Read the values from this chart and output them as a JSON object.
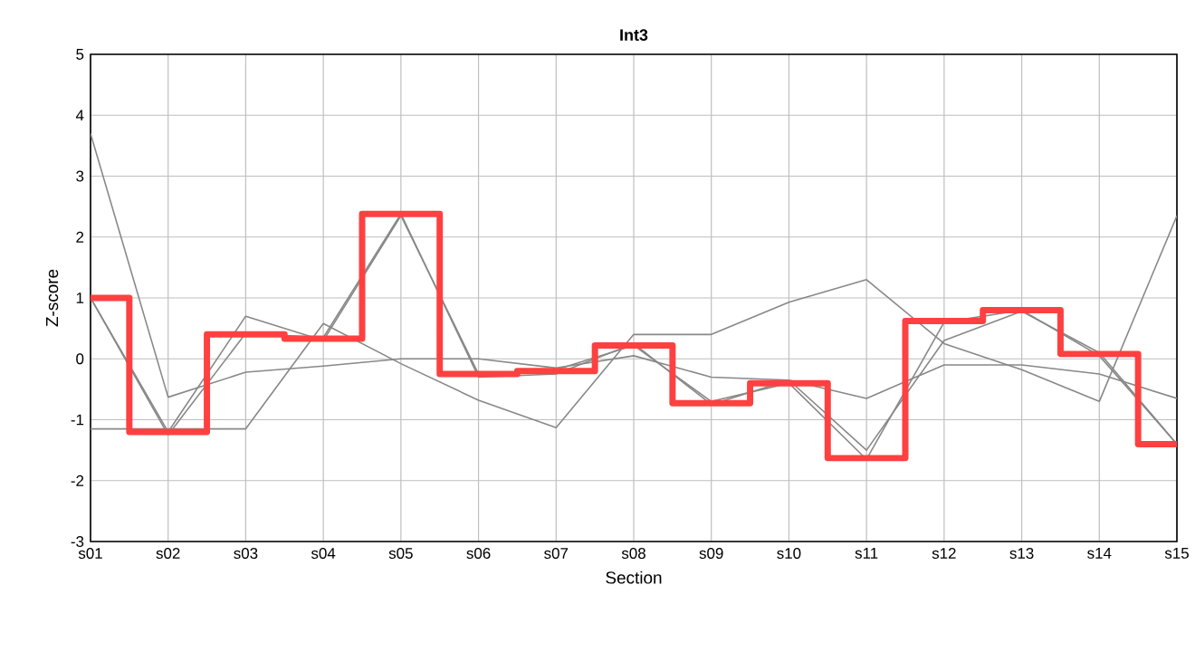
{
  "chart_data": {
    "type": "line",
    "title": "Int3",
    "xlabel": "Section",
    "ylabel": "Z-score",
    "categories": [
      "s01",
      "s02",
      "s03",
      "s04",
      "s05",
      "s06",
      "s07",
      "s08",
      "s09",
      "s10",
      "s11",
      "s12",
      "s13",
      "s14",
      "s15"
    ],
    "ylim": [
      -3,
      5
    ],
    "yticks": [
      -3,
      -2,
      -1,
      0,
      1,
      2,
      3,
      4,
      5
    ],
    "grid": true,
    "marker": "none",
    "line_style": "solid",
    "series": [
      {
        "color": "#888888",
        "values": [
          3.7,
          -0.63,
          -0.22,
          -0.12,
          0.0,
          0.0,
          -0.15,
          0.05,
          -0.3,
          -0.35,
          -0.65,
          -0.1,
          -0.1,
          -0.25,
          -0.65
        ]
      },
      {
        "color": "#888888",
        "values": [
          -1.15,
          -1.15,
          -1.15,
          0.58,
          -0.08,
          -0.68,
          -1.13,
          0.4,
          0.4,
          0.93,
          1.3,
          0.25,
          -0.18,
          -0.7,
          2.35
        ]
      },
      {
        "color": "#888888",
        "values": [
          1.0,
          -1.25,
          0.42,
          0.35,
          2.38,
          -0.3,
          -0.25,
          0.25,
          -0.75,
          -0.35,
          -1.5,
          0.3,
          0.78,
          0.1,
          -1.4
        ]
      },
      {
        "color": "#888888",
        "values": [
          1.0,
          -1.2,
          0.7,
          0.3,
          2.35,
          -0.25,
          -0.18,
          0.22,
          -0.7,
          -0.4,
          -1.65,
          0.6,
          0.8,
          0.05,
          -1.4
        ]
      },
      {
        "type": "step",
        "color": "#ff4040",
        "values": [
          1.0,
          -1.2,
          0.4,
          0.33,
          2.38,
          -0.25,
          -0.2,
          0.22,
          -0.73,
          -0.4,
          -1.63,
          0.62,
          0.8,
          0.08,
          -1.4
        ]
      }
    ]
  }
}
